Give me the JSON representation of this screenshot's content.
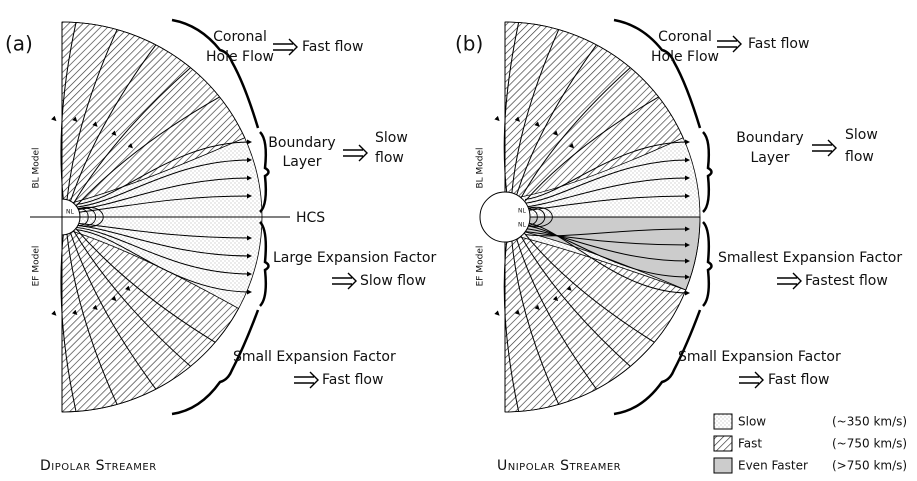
{
  "panels": [
    {
      "label": "(a)",
      "title": "Dipolar Streamer",
      "side_labels": [
        "BL Model",
        "EF Model"
      ],
      "nl_labels": [
        "NL"
      ],
      "hcs": "HCS",
      "annotations": [
        {
          "region": [
            "Coronal",
            "Hole Flow"
          ],
          "result": [
            "Fast flow"
          ]
        },
        {
          "region": [
            "Boundary",
            "Layer"
          ],
          "result": [
            "Slow",
            "flow"
          ]
        },
        {
          "region": [
            "Large Expansion Factor"
          ],
          "result": [
            "Slow flow"
          ]
        },
        {
          "region": [
            "Small Expansion Factor"
          ],
          "result": [
            "Fast flow"
          ]
        }
      ]
    },
    {
      "label": "(b)",
      "title": "Unipolar Streamer",
      "side_labels": [
        "BL Model",
        "EF Model"
      ],
      "nl_labels": [
        "NL",
        "NL"
      ],
      "annotations": [
        {
          "region": [
            "Coronal",
            "Hole Flow"
          ],
          "result": [
            "Fast flow"
          ]
        },
        {
          "region": [
            "Boundary",
            "Layer"
          ],
          "result": [
            "Slow",
            "flow"
          ]
        },
        {
          "region": [
            "Smallest Expansion Factor"
          ],
          "result": [
            "Fastest flow"
          ]
        },
        {
          "region": [
            "Small Expansion Factor"
          ],
          "result": [
            "Fast flow"
          ]
        }
      ]
    }
  ],
  "legend": [
    {
      "label": "Slow",
      "speed": "(~350 km/s)"
    },
    {
      "label": "Fast",
      "speed": "(~750 km/s)"
    },
    {
      "label": "Even Faster",
      "speed": "(>750 km/s)"
    }
  ]
}
